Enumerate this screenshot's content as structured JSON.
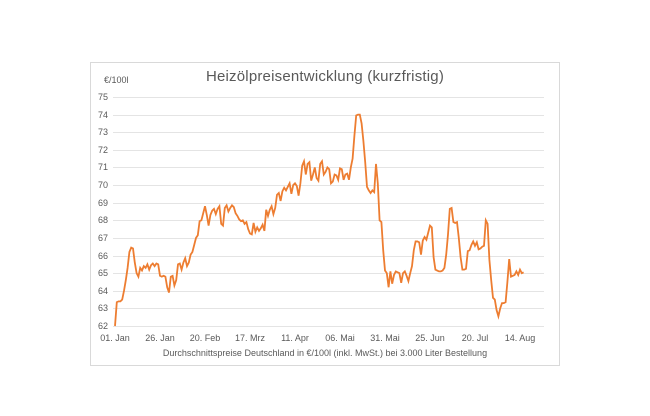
{
  "chart_data": {
    "type": "line",
    "title": "Heizölpreisentwicklung (kurzfristig)",
    "ylabel": "€/100l",
    "xlabel": "",
    "ylim": [
      62,
      75
    ],
    "y_tick_step": 1,
    "grid": "horizontal",
    "legend_position": "none",
    "line_color": "#ED7D31",
    "x_tick_labels": [
      "01. Jan",
      "26. Jan",
      "20. Feb",
      "17. Mrz",
      "11. Apr",
      "06. Mai",
      "31. Mai",
      "25. Jun",
      "20. Jul",
      "14. Aug"
    ],
    "x_tick_positions_days": [
      0,
      25,
      50,
      75,
      100,
      125,
      150,
      175,
      200,
      225
    ],
    "x_range_days": [
      0,
      227
    ],
    "annotation": "Durchschnittspreise Deutschland in €/100l (inkl. MwSt.) bei 3.000 Liter Bestellung",
    "values_daily": [
      62.0,
      63.35,
      63.4,
      63.4,
      63.5,
      64.0,
      64.6,
      65.3,
      66.2,
      66.45,
      66.4,
      65.6,
      65.0,
      64.8,
      65.3,
      65.15,
      65.4,
      65.3,
      65.5,
      65.2,
      65.45,
      65.55,
      65.4,
      65.55,
      65.5,
      64.85,
      64.8,
      64.85,
      64.8,
      64.2,
      63.9,
      64.8,
      64.85,
      64.3,
      64.6,
      65.5,
      65.55,
      65.2,
      65.6,
      65.85,
      65.4,
      65.6,
      66.05,
      66.2,
      66.6,
      67.0,
      67.15,
      67.95,
      68.0,
      68.4,
      68.8,
      68.3,
      67.7,
      68.3,
      68.55,
      68.65,
      68.35,
      68.65,
      68.8,
      67.8,
      67.7,
      68.7,
      68.85,
      68.5,
      68.7,
      68.85,
      68.75,
      68.4,
      68.25,
      68.05,
      67.95,
      68.0,
      67.8,
      67.9,
      67.5,
      67.25,
      67.2,
      67.85,
      67.35,
      67.6,
      67.4,
      67.55,
      67.75,
      67.4,
      68.6,
      68.25,
      68.6,
      68.8,
      68.35,
      68.7,
      69.45,
      69.55,
      69.1,
      69.65,
      69.85,
      69.7,
      69.9,
      70.1,
      69.5,
      70.0,
      70.1,
      69.95,
      69.4,
      70.1,
      71.1,
      71.35,
      70.6,
      71.2,
      71.3,
      70.25,
      70.6,
      71.0,
      70.4,
      70.25,
      71.2,
      71.35,
      70.6,
      70.75,
      71.0,
      70.9,
      70.1,
      70.2,
      70.6,
      70.55,
      70.3,
      70.95,
      70.9,
      70.3,
      70.6,
      70.65,
      70.3,
      71.0,
      71.5,
      72.8,
      73.95,
      74.0,
      74.0,
      73.5,
      72.5,
      71.3,
      69.9,
      69.7,
      69.55,
      69.7,
      69.6,
      71.2,
      70.1,
      68.0,
      67.9,
      66.3,
      65.15,
      65.0,
      64.2,
      65.1,
      64.4,
      64.9,
      65.1,
      65.05,
      65.0,
      64.45,
      65.0,
      65.1,
      64.85,
      64.55,
      65.0,
      65.4,
      66.3,
      66.8,
      66.8,
      66.75,
      66.05,
      66.85,
      67.05,
      66.9,
      67.3,
      67.7,
      67.6,
      65.9,
      65.2,
      65.15,
      65.1,
      65.1,
      65.15,
      65.3,
      66.05,
      67.2,
      68.65,
      68.7,
      67.9,
      67.85,
      67.9,
      67.0,
      65.9,
      65.2,
      65.2,
      65.25,
      66.25,
      66.3,
      66.6,
      66.8,
      66.55,
      66.75,
      66.35,
      66.4,
      66.5,
      66.55,
      68.0,
      67.8,
      65.75,
      64.6,
      63.6,
      63.5,
      62.9,
      62.55,
      63.0,
      63.3,
      63.3,
      63.35,
      64.5,
      65.8,
      64.8,
      64.85,
      64.9,
      65.1,
      64.9,
      65.2,
      65.0,
      65.05
    ]
  }
}
